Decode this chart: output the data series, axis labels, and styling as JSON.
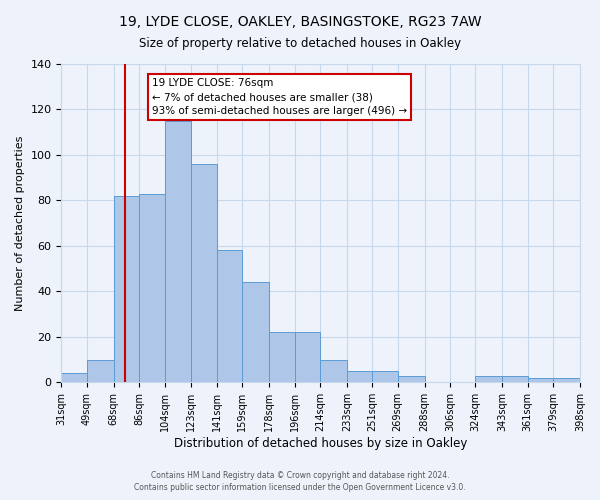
{
  "title": "19, LYDE CLOSE, OAKLEY, BASINGSTOKE, RG23 7AW",
  "subtitle": "Size of property relative to detached houses in Oakley",
  "xlabel": "Distribution of detached houses by size in Oakley",
  "ylabel": "Number of detached properties",
  "bin_labels": [
    "31sqm",
    "49sqm",
    "68sqm",
    "86sqm",
    "104sqm",
    "123sqm",
    "141sqm",
    "159sqm",
    "178sqm",
    "196sqm",
    "214sqm",
    "233sqm",
    "251sqm",
    "269sqm",
    "288sqm",
    "306sqm",
    "324sqm",
    "343sqm",
    "361sqm",
    "379sqm",
    "398sqm"
  ],
  "bin_edges": [
    31,
    49,
    68,
    86,
    104,
    123,
    141,
    159,
    178,
    196,
    214,
    233,
    251,
    269,
    288,
    306,
    324,
    343,
    361,
    379,
    398
  ],
  "bar_heights": [
    4,
    10,
    82,
    83,
    115,
    96,
    58,
    44,
    22,
    22,
    10,
    5,
    5,
    3,
    0,
    0,
    3,
    3,
    2,
    2
  ],
  "bar_color": "#aec6e8",
  "bar_edge_color": "#5b9bd5",
  "grid_color": "#c8d8ec",
  "background_color": "#eef3fb",
  "vline_x": 76,
  "vline_color": "#cc0000",
  "annotation_title": "19 LYDE CLOSE: 76sqm",
  "annotation_line1": "← 7% of detached houses are smaller (38)",
  "annotation_line2": "93% of semi-detached houses are larger (496) →",
  "annotation_box_color": "white",
  "annotation_box_edge_color": "#cc0000",
  "ylim": [
    0,
    140
  ],
  "yticks": [
    0,
    20,
    40,
    60,
    80,
    100,
    120,
    140
  ],
  "footer1": "Contains HM Land Registry data © Crown copyright and database right 2024.",
  "footer2": "Contains public sector information licensed under the Open Government Licence v3.0."
}
